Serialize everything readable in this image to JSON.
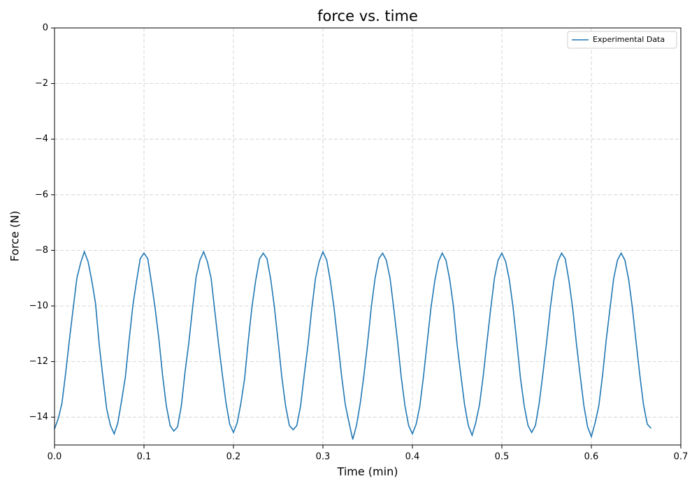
{
  "chart_data": {
    "type": "line",
    "title": "force vs. time",
    "x_label": "Time (min)",
    "y_label": "Force (N)",
    "x": [
      0,
      0.0042,
      0.0083,
      0.0125,
      0.0167,
      0.0208,
      0.025,
      0.0292,
      0.0333,
      0.0375,
      0.0417,
      0.0458,
      0.05,
      0.0542,
      0.0583,
      0.0625,
      0.0667,
      0.0708,
      0.075,
      0.0792,
      0.0833,
      0.0875,
      0.0917,
      0.0958,
      0.1,
      0.1042,
      0.1083,
      0.1125,
      0.1167,
      0.1208,
      0.125,
      0.1292,
      0.1333,
      0.1375,
      0.1417,
      0.1458,
      0.15,
      0.1542,
      0.1583,
      0.1625,
      0.1667,
      0.1708,
      0.175,
      0.1792,
      0.1833,
      0.1875,
      0.1917,
      0.1958,
      0.2,
      0.2042,
      0.2083,
      0.2125,
      0.2167,
      0.2208,
      0.225,
      0.2292,
      0.2333,
      0.2375,
      0.2417,
      0.2458,
      0.25,
      0.2542,
      0.2583,
      0.2625,
      0.2667,
      0.2708,
      0.275,
      0.2792,
      0.2833,
      0.2875,
      0.2917,
      0.2958,
      0.3,
      0.3042,
      0.3083,
      0.3125,
      0.3167,
      0.3208,
      0.325,
      0.3292,
      0.3333,
      0.3375,
      0.3417,
      0.3458,
      0.35,
      0.3542,
      0.3583,
      0.3625,
      0.3667,
      0.3708,
      0.375,
      0.3792,
      0.3833,
      0.3875,
      0.3917,
      0.3958,
      0.4,
      0.4042,
      0.4083,
      0.4125,
      0.4167,
      0.4208,
      0.425,
      0.4292,
      0.4333,
      0.4375,
      0.4417,
      0.4458,
      0.45,
      0.4542,
      0.4583,
      0.4625,
      0.4667,
      0.4708,
      0.475,
      0.4792,
      0.4833,
      0.4875,
      0.4917,
      0.4958,
      0.5,
      0.5042,
      0.5083,
      0.5125,
      0.5167,
      0.5208,
      0.525,
      0.5292,
      0.5333,
      0.5375,
      0.5417,
      0.5458,
      0.55,
      0.5542,
      0.5583,
      0.5625,
      0.5667,
      0.5708,
      0.575,
      0.5792,
      0.5833,
      0.5875,
      0.5917,
      0.5958,
      0.6,
      0.6042,
      0.6083,
      0.6125,
      0.6167,
      0.6208,
      0.625,
      0.6292,
      0.6333,
      0.6375,
      0.6417,
      0.6458,
      0.65,
      0.6542,
      0.6583,
      0.6625,
      0.6667
    ],
    "series": [
      {
        "name": "Experimental Data",
        "color": "#1f77b4",
        "values": [
          -14.42,
          -14.05,
          -13.5,
          -12.4,
          -11.2,
          -10.1,
          -9.0,
          -8.45,
          -8.05,
          -8.4,
          -9.1,
          -9.9,
          -11.4,
          -12.6,
          -13.7,
          -14.3,
          -14.6,
          -14.2,
          -13.4,
          -12.55,
          -11.25,
          -10.0,
          -9.1,
          -8.3,
          -8.1,
          -8.3,
          -9.15,
          -10.1,
          -11.2,
          -12.5,
          -13.6,
          -14.3,
          -14.5,
          -14.35,
          -13.6,
          -12.4,
          -11.35,
          -10.1,
          -8.95,
          -8.35,
          -8.05,
          -8.4,
          -9.0,
          -10.2,
          -11.35,
          -12.45,
          -13.5,
          -14.25,
          -14.55,
          -14.2,
          -13.5,
          -12.6,
          -11.2,
          -10.0,
          -9.05,
          -8.3,
          -8.1,
          -8.3,
          -9.05,
          -10.05,
          -11.3,
          -12.6,
          -13.6,
          -14.3,
          -14.45,
          -14.3,
          -13.6,
          -12.45,
          -11.4,
          -10.1,
          -9.0,
          -8.4,
          -8.05,
          -8.35,
          -9.1,
          -10.1,
          -11.3,
          -12.5,
          -13.55,
          -14.2,
          -14.8,
          -14.3,
          -13.5,
          -12.5,
          -11.3,
          -10.0,
          -9.0,
          -8.3,
          -8.1,
          -8.35,
          -9.0,
          -10.1,
          -11.25,
          -12.55,
          -13.6,
          -14.3,
          -14.6,
          -14.25,
          -13.6,
          -12.5,
          -11.25,
          -10.05,
          -9.1,
          -8.4,
          -8.1,
          -8.35,
          -9.05,
          -10.0,
          -11.4,
          -12.5,
          -13.55,
          -14.3,
          -14.65,
          -14.2,
          -13.55,
          -12.5,
          -11.3,
          -10.1,
          -9.0,
          -8.35,
          -8.1,
          -8.4,
          -9.05,
          -10.05,
          -11.3,
          -12.6,
          -13.6,
          -14.3,
          -14.55,
          -14.3,
          -13.5,
          -12.45,
          -11.3,
          -10.05,
          -9.05,
          -8.4,
          -8.1,
          -8.3,
          -9.1,
          -10.1,
          -11.35,
          -12.5,
          -13.6,
          -14.35,
          -14.7,
          -14.2,
          -13.6,
          -12.5,
          -11.2,
          -10.1,
          -9.0,
          -8.35,
          -8.1,
          -8.35,
          -9.05,
          -10.05,
          -11.3,
          -12.5,
          -13.55,
          -14.25,
          -14.4
        ]
      }
    ],
    "xlim": [
      0,
      0.7
    ],
    "ylim": [
      -15,
      0
    ],
    "xticks": [
      {
        "value": 0,
        "label": "0.0"
      },
      0.1,
      0.2,
      0.3,
      0.4,
      0.5,
      0.6,
      0.7
    ],
    "yticks": [
      {
        "value": -14,
        "label": "−14"
      },
      {
        "value": -12,
        "label": "−12"
      },
      {
        "value": -10,
        "label": "−10"
      },
      {
        "value": -8,
        "label": "−8"
      },
      {
        "value": -6,
        "label": "−6"
      },
      {
        "value": -4,
        "label": "−4"
      },
      {
        "value": -2,
        "label": "−2"
      },
      0
    ],
    "grid": true,
    "legend": "upper right"
  }
}
